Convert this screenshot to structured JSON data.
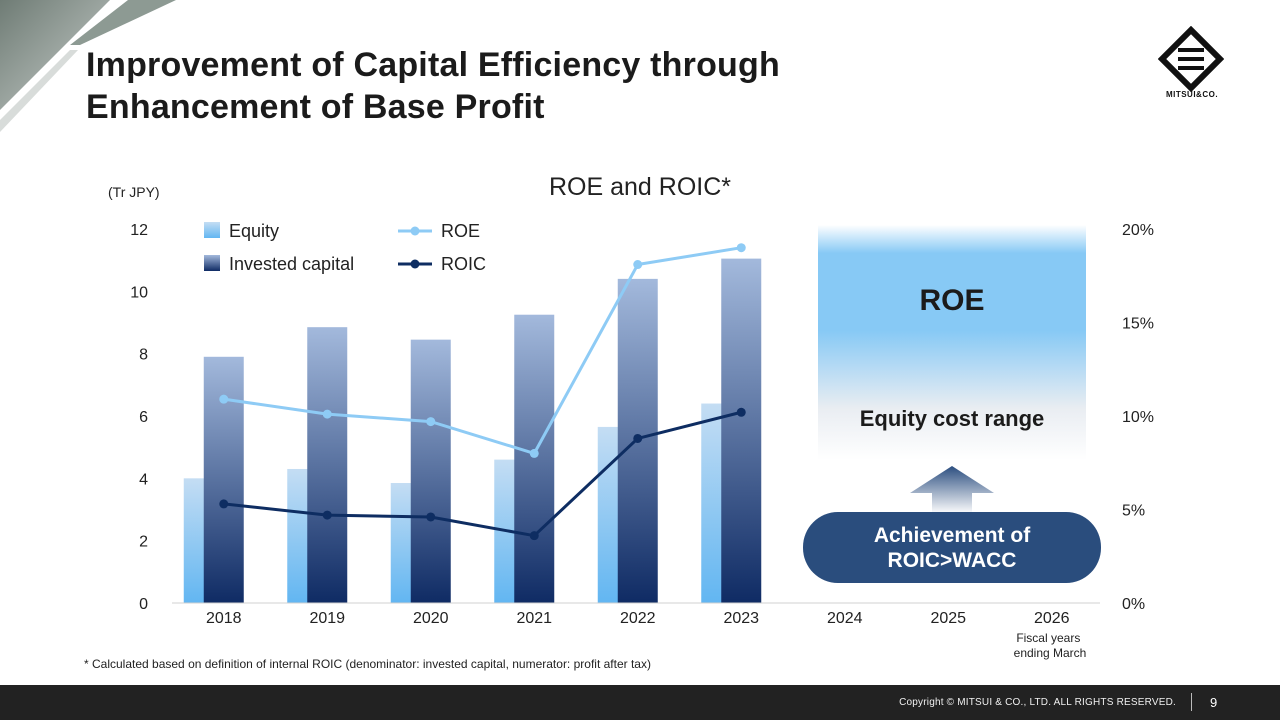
{
  "slide": {
    "title_line1": "Improvement of Capital Efficiency through",
    "title_line2": "Enhancement of Base Profit",
    "logo_text": "MITSUI&CO.",
    "footnote": "* Calculated based on definition of internal ROIC (denominator: invested capital, numerator: profit after tax)",
    "copyright": "Copyright © MITSUI & CO., LTD. ALL RIGHTS RESERVED.",
    "page_number": "9"
  },
  "chart_data": {
    "type": "bar",
    "title": "ROE and ROIC*",
    "y_left_label": "(Tr JPY)",
    "y_left_lim": [
      0,
      12
    ],
    "y_left_ticks": [
      "0",
      "2",
      "4",
      "6",
      "8",
      "10",
      "12"
    ],
    "y_right_lim": [
      0,
      20
    ],
    "y_right_ticks": [
      "0%",
      "5%",
      "10%",
      "15%",
      "20%"
    ],
    "categories": [
      "2018",
      "2019",
      "2020",
      "2021",
      "2022",
      "2023",
      "2024",
      "2025",
      "2026"
    ],
    "x_note": "Fiscal years ending March",
    "bar_series": [
      {
        "name": "Equity",
        "axis": "left",
        "values": [
          4.0,
          4.3,
          3.85,
          4.6,
          5.65,
          6.4
        ]
      },
      {
        "name": "Invested capital",
        "axis": "left",
        "values": [
          7.9,
          8.85,
          8.45,
          9.25,
          10.4,
          11.05
        ]
      }
    ],
    "line_series": [
      {
        "name": "ROE",
        "axis": "right",
        "values": [
          10.9,
          10.1,
          9.7,
          8.0,
          18.1,
          19.0
        ]
      },
      {
        "name": "ROIC",
        "axis": "right",
        "values": [
          5.3,
          4.7,
          4.6,
          3.6,
          8.8,
          10.2
        ]
      }
    ],
    "colors": {
      "equity_top": "#c4ddf3",
      "equity_bottom": "#62b6f2",
      "invested_top": "#a3b9dc",
      "invested_bottom": "#0f2b64",
      "roe": "#8ecbf5",
      "roic": "#0e2d62",
      "target_band": "#87c9f5",
      "callout": "#2a4d7d"
    },
    "annotations": {
      "target_label": "ROE",
      "band_label": "Equity cost range",
      "callout_line1": "Achievement of",
      "callout_line2": "ROIC>WACC"
    }
  }
}
